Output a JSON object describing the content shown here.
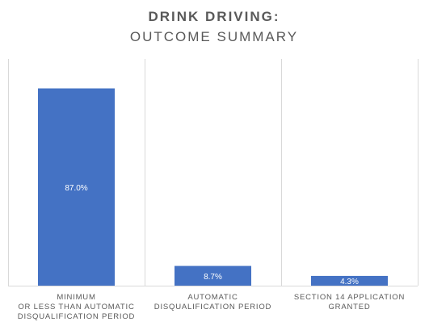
{
  "chart_data": {
    "type": "bar",
    "title": "DRINK DRIVING:",
    "subtitle": "OUTCOME SUMMARY",
    "categories": [
      [
        "MINIMUM",
        "OR LESS THAN AUTOMATIC",
        "DISQUALIFICATION PERIOD"
      ],
      [
        "AUTOMATIC",
        "DISQUALIFICATION PERIOD"
      ],
      [
        "SECTION 14 APPLICATION",
        "GRANTED"
      ]
    ],
    "values": [
      87.0,
      8.7,
      4.3
    ],
    "value_labels": [
      "87.0%",
      "8.7%",
      "4.3%"
    ],
    "ylim": [
      0,
      100
    ],
    "bar_color": "#4472C4",
    "grid": true,
    "legend": "none"
  }
}
